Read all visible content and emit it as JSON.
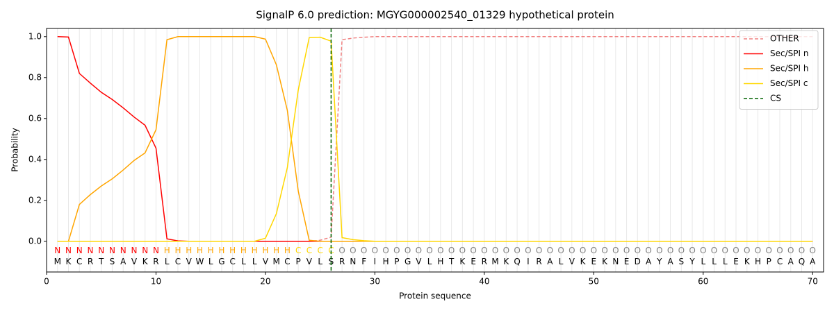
{
  "chart_data": {
    "type": "line",
    "title": "SignalP 6.0 prediction: MGYG000002540_01329 hypothetical protein",
    "xlabel": "Protein sequence",
    "ylabel": "Probability",
    "xlim": [
      0,
      71
    ],
    "ylim": [
      -0.15,
      1.04
    ],
    "xticks": [
      0,
      10,
      20,
      30,
      40,
      50,
      60,
      70
    ],
    "yticks": [
      {
        "value": 0,
        "label": "0.0"
      },
      {
        "value": 0.2,
        "label": "0.2"
      },
      {
        "value": 0.4,
        "label": "0.4"
      },
      {
        "value": 0.6,
        "label": "0.6"
      },
      {
        "value": 0.8,
        "label": "0.8"
      },
      {
        "value": 1,
        "label": "1.0"
      }
    ],
    "grid": true,
    "legend": "upper right",
    "x": [
      1,
      2,
      3,
      4,
      5,
      6,
      7,
      8,
      9,
      10,
      11,
      12,
      13,
      14,
      15,
      16,
      17,
      18,
      19,
      20,
      21,
      22,
      23,
      24,
      25,
      26,
      27,
      28,
      29,
      30,
      31,
      32,
      33,
      34,
      35,
      36,
      37,
      38,
      39,
      40,
      41,
      42,
      43,
      44,
      45,
      46,
      47,
      48,
      49,
      50,
      51,
      52,
      53,
      54,
      55,
      56,
      57,
      58,
      59,
      60,
      61,
      62,
      63,
      64,
      65,
      66,
      67,
      68,
      69,
      70
    ],
    "series": [
      {
        "name": "OTHER",
        "color": "#f08080",
        "dash": true,
        "values": [
          0,
          0,
          0,
          0,
          0,
          0,
          0,
          0,
          0,
          0,
          0,
          0,
          0,
          0,
          0,
          0,
          0,
          0,
          0,
          0,
          0,
          0,
          0,
          0,
          0.005,
          0.02,
          0.985,
          0.993,
          0.997,
          1,
          1,
          1,
          1,
          1,
          1,
          1,
          1,
          1,
          1,
          1,
          1,
          1,
          1,
          1,
          1,
          1,
          1,
          1,
          1,
          1,
          1,
          1,
          1,
          1,
          1,
          1,
          1,
          1,
          1,
          1,
          1,
          1,
          1,
          1,
          1,
          1,
          1,
          1,
          1,
          1
        ]
      },
      {
        "name": "Sec/SPI n",
        "color": "#ff0000",
        "dash": false,
        "values": [
          1,
          0.998,
          0.82,
          0.773,
          0.728,
          0.693,
          0.652,
          0.607,
          0.567,
          0.455,
          0.012,
          0.002,
          0,
          0,
          0,
          0,
          0,
          0,
          0,
          0,
          0,
          0,
          0,
          0,
          0,
          0,
          0,
          0,
          0,
          0,
          0,
          0,
          0,
          0,
          0,
          0,
          0,
          0,
          0,
          0,
          0,
          0,
          0,
          0,
          0,
          0,
          0,
          0,
          0,
          0,
          0,
          0,
          0,
          0,
          0,
          0,
          0,
          0,
          0,
          0,
          0,
          0,
          0,
          0,
          0,
          0,
          0,
          0,
          0,
          0
        ]
      },
      {
        "name": "Sec/SPI h",
        "color": "#ffa500",
        "dash": false,
        "values": [
          0,
          0,
          0.18,
          0.228,
          0.27,
          0.305,
          0.348,
          0.395,
          0.432,
          0.545,
          0.985,
          1,
          1,
          1,
          1,
          1,
          1,
          1,
          1,
          0.988,
          0.862,
          0.64,
          0.245,
          0.005,
          0,
          0,
          0,
          0,
          0,
          0,
          0,
          0,
          0,
          0,
          0,
          0,
          0,
          0,
          0,
          0,
          0,
          0,
          0,
          0,
          0,
          0,
          0,
          0,
          0,
          0,
          0,
          0,
          0,
          0,
          0,
          0,
          0,
          0,
          0,
          0,
          0,
          0,
          0,
          0,
          0,
          0,
          0,
          0,
          0,
          0
        ]
      },
      {
        "name": "Sec/SPI c",
        "color": "#ffd700",
        "dash": false,
        "values": [
          0,
          0,
          0,
          0,
          0,
          0,
          0,
          0,
          0,
          0,
          0,
          0,
          0,
          0,
          0,
          0,
          0,
          0,
          0,
          0.015,
          0.135,
          0.36,
          0.74,
          0.995,
          0.997,
          0.978,
          0.018,
          0.008,
          0.003,
          0,
          0,
          0,
          0,
          0,
          0,
          0,
          0,
          0,
          0,
          0,
          0,
          0,
          0,
          0,
          0,
          0,
          0,
          0,
          0,
          0,
          0,
          0,
          0,
          0,
          0,
          0,
          0,
          0,
          0,
          0,
          0,
          0,
          0,
          0,
          0,
          0,
          0,
          0,
          0,
          0
        ]
      }
    ],
    "cs_line": {
      "name": "CS",
      "x": 26,
      "color": "#006400"
    },
    "sequence": [
      "M",
      "K",
      "C",
      "R",
      "T",
      "S",
      "A",
      "V",
      "K",
      "R",
      "L",
      "C",
      "V",
      "W",
      "L",
      "G",
      "C",
      "L",
      "L",
      "V",
      "M",
      "C",
      "P",
      "V",
      "L",
      "S",
      "R",
      "N",
      "F",
      "I",
      "H",
      "P",
      "G",
      "V",
      "L",
      "H",
      "T",
      "K",
      "E",
      "R",
      "M",
      "K",
      "Q",
      "I",
      "R",
      "A",
      "L",
      "V",
      "K",
      "E",
      "K",
      "N",
      "E",
      "D",
      "A",
      "Y",
      "A",
      "S",
      "Y",
      "L",
      "L",
      "L",
      "E",
      "K",
      "H",
      "P",
      "C",
      "A",
      "Q",
      "A"
    ],
    "region_labels": [
      "N",
      "N",
      "N",
      "N",
      "N",
      "N",
      "N",
      "N",
      "N",
      "N",
      "H",
      "H",
      "H",
      "H",
      "H",
      "H",
      "H",
      "H",
      "H",
      "H",
      "H",
      "H",
      "C",
      "C",
      "C",
      "C",
      "O",
      "O",
      "O",
      "O",
      "O",
      "O",
      "O",
      "O",
      "O",
      "O",
      "O",
      "O",
      "O",
      "O",
      "O",
      "O",
      "O",
      "O",
      "O",
      "O",
      "O",
      "O",
      "O",
      "O",
      "O",
      "O",
      "O",
      "O",
      "O",
      "O",
      "O",
      "O",
      "O",
      "O",
      "O",
      "O",
      "O",
      "O",
      "O",
      "O",
      "O",
      "O",
      "O",
      "O"
    ],
    "region_colors": {
      "N": "#ff0000",
      "H": "#ffa500",
      "C": "#ffd700",
      "O": "#808080"
    }
  }
}
